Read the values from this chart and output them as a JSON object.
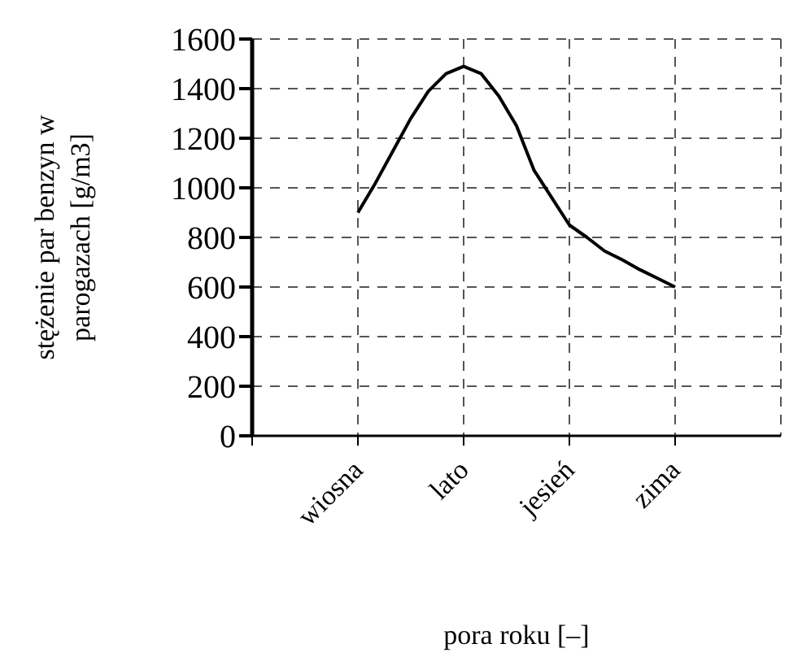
{
  "chart_data": {
    "type": "line",
    "xlabel": "pora roku [–]",
    "ylabel": "stężenie par benzyn w parogazach [g/m3]",
    "categories": [
      null,
      null,
      null,
      null,
      null,
      null,
      "wiosna",
      null,
      null,
      null,
      null,
      null,
      "lato",
      null,
      null,
      null,
      null,
      null,
      "jesień",
      null,
      null,
      null,
      null,
      null,
      "zima",
      null,
      null,
      null,
      null,
      null,
      null
    ],
    "series": [
      {
        "color": "#000000",
        "values": [
          null,
          null,
          null,
          null,
          null,
          null,
          900,
          1020,
          1150,
          1280,
          1390,
          1460,
          1490,
          1460,
          1370,
          1250,
          1070,
          960,
          850,
          800,
          745,
          710,
          670,
          635,
          600,
          null,
          null,
          null,
          null,
          null,
          null
        ]
      }
    ],
    "ylim": [
      0,
      1600
    ],
    "yticks": [
      0,
      200,
      400,
      600,
      800,
      1000,
      1200,
      1400,
      1600
    ],
    "grid": true,
    "legend": false,
    "marker": "none",
    "line_style": "solid"
  }
}
